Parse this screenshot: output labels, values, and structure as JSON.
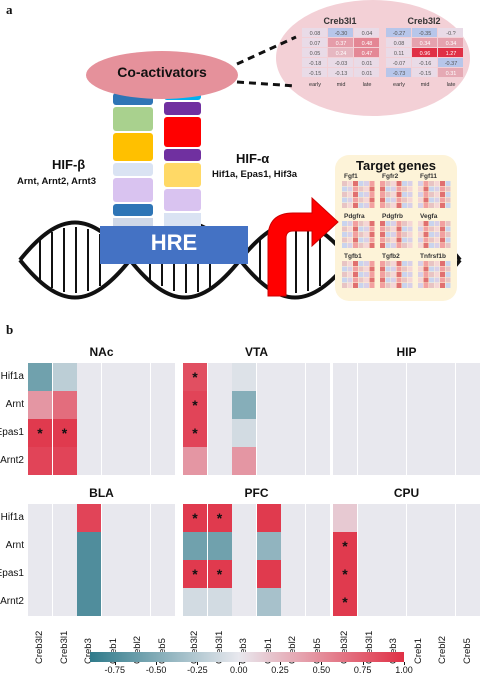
{
  "panel_a": {
    "label": "a",
    "coactivators": "Co-activators",
    "hif_beta": {
      "title": "HIF-β",
      "members": "Arnt, Arnt2, Arnt3"
    },
    "hif_alpha": {
      "title": "HIF-α",
      "members": "Hif1a, Epas1, Hif3a"
    },
    "hre": "HRE",
    "target_genes": "Target genes",
    "zoom": {
      "genes": [
        "Creb3l1",
        "Creb3l2"
      ],
      "cols": [
        "early",
        "mid",
        "late"
      ],
      "values": [
        [
          "0.08",
          "-0.30",
          "0.04",
          "-0.27",
          "-0.35",
          "-0.?"
        ],
        [
          "0.07",
          "0.37",
          "0.48",
          "0.08",
          "0.34",
          "0.34"
        ],
        [
          "0.05",
          "0.24",
          "0.47",
          "0.11",
          "0.96",
          "1.27"
        ],
        [
          "-0.18",
          "-0.03",
          "0.01",
          "-0.07",
          "-0.16",
          "-0.37"
        ],
        [
          "-0.15",
          "-0.13",
          "0.01",
          "-0.73",
          "-0.15",
          "0.31"
        ]
      ]
    },
    "target_gene_names": [
      "Fgf1",
      "Fgfr2",
      "Fgf11",
      "Pdgfra",
      "Pdgfrb",
      "Vegfa",
      "Tgfb1",
      "Tgfb2",
      "Tnfrsf1b"
    ]
  },
  "panel_b": {
    "label": "b",
    "rows": [
      "Hif1a",
      "Arnt",
      "Epas1",
      "Arnt2"
    ],
    "cols": [
      "Creb3l2",
      "Creb3l1",
      "Creb3",
      "Creb1",
      "Crebl2",
      "Creb5"
    ],
    "colorbar": {
      "ticks": [
        "-0.75",
        "-0.50",
        "-0.25",
        "0.00",
        "0.25",
        "0.50",
        "0.75",
        "1.00"
      ],
      "min": -0.9,
      "max": 1.0
    },
    "colors": {
      "neg": "#2f7a8a",
      "zero": "#e8e8ee",
      "pos": "#e03045"
    }
  },
  "chart_data": [
    {
      "type": "heatmap",
      "title": "NAc",
      "rows": [
        "Hif1a",
        "Arnt",
        "Epas1",
        "Arnt2"
      ],
      "cols": [
        "Creb3l2",
        "Creb3l1",
        "Creb3",
        "Creb1",
        "Crebl2",
        "Creb5"
      ],
      "values": [
        [
          -0.55,
          -0.2,
          0,
          0,
          0,
          0
        ],
        [
          0.4,
          0.6,
          0,
          0,
          0,
          0
        ],
        [
          0.85,
          0.85,
          0,
          0,
          0,
          0
        ],
        [
          0.8,
          0.8,
          0,
          0,
          0,
          0
        ]
      ],
      "significant": [
        [
          false,
          false,
          false,
          false,
          false,
          false
        ],
        [
          false,
          false,
          false,
          false,
          false,
          false
        ],
        [
          true,
          true,
          false,
          false,
          false,
          false
        ],
        [
          false,
          false,
          false,
          false,
          false,
          false
        ]
      ]
    },
    {
      "type": "heatmap",
      "title": "VTA",
      "rows": [
        "Hif1a",
        "Arnt",
        "Epas1",
        "Arnt2"
      ],
      "cols": [
        "Creb3l2",
        "Creb3l1",
        "Creb3",
        "Creb1",
        "Crebl2",
        "Creb5"
      ],
      "values": [
        [
          0.75,
          0,
          -0.05,
          0,
          0,
          0
        ],
        [
          0.8,
          0,
          -0.45,
          0,
          0,
          0
        ],
        [
          0.8,
          0,
          -0.1,
          0,
          0,
          0
        ],
        [
          0.4,
          0,
          0.4,
          0,
          0,
          0
        ]
      ],
      "significant": [
        [
          true,
          false,
          false,
          false,
          false,
          false
        ],
        [
          true,
          false,
          false,
          false,
          false,
          false
        ],
        [
          true,
          false,
          false,
          false,
          false,
          false
        ],
        [
          false,
          false,
          false,
          false,
          false,
          false
        ]
      ]
    },
    {
      "type": "heatmap",
      "title": "HIP",
      "rows": [
        "Hif1a",
        "Arnt",
        "Epas1",
        "Arnt2"
      ],
      "cols": [
        "Creb3l2",
        "Creb3l1",
        "Creb3",
        "Creb1",
        "Crebl2",
        "Creb5"
      ],
      "values": [
        [
          0,
          0,
          0,
          0,
          0,
          0
        ],
        [
          0,
          0,
          0,
          0,
          0,
          0
        ],
        [
          0,
          0,
          0,
          0,
          0,
          0
        ],
        [
          0,
          0,
          0,
          0,
          0,
          0
        ]
      ],
      "significant": [
        [
          false,
          false,
          false,
          false,
          false,
          false
        ],
        [
          false,
          false,
          false,
          false,
          false,
          false
        ],
        [
          false,
          false,
          false,
          false,
          false,
          false
        ],
        [
          false,
          false,
          false,
          false,
          false,
          false
        ]
      ]
    },
    {
      "type": "heatmap",
      "title": "BLA",
      "rows": [
        "Hif1a",
        "Arnt",
        "Epas1",
        "Arnt2"
      ],
      "cols": [
        "Creb3l2",
        "Creb3l1",
        "Creb3",
        "Creb1",
        "Crebl2",
        "Creb5"
      ],
      "values": [
        [
          0,
          0,
          0.8,
          0,
          0,
          0
        ],
        [
          0,
          0,
          -0.7,
          0,
          0,
          0
        ],
        [
          0,
          0,
          -0.7,
          0,
          0,
          0
        ],
        [
          0,
          0,
          -0.7,
          0,
          0,
          0
        ]
      ],
      "significant": [
        [
          false,
          false,
          false,
          false,
          false,
          false
        ],
        [
          false,
          false,
          false,
          false,
          false,
          false
        ],
        [
          false,
          false,
          false,
          false,
          false,
          false
        ],
        [
          false,
          false,
          false,
          false,
          false,
          false
        ]
      ]
    },
    {
      "type": "heatmap",
      "title": "PFC",
      "rows": [
        "Hif1a",
        "Arnt",
        "Epas1",
        "Arnt2"
      ],
      "cols": [
        "Creb3l2",
        "Creb3l1",
        "Creb3",
        "Creb1",
        "Crebl2",
        "Creb5"
      ],
      "values": [
        [
          0.85,
          0.85,
          0,
          0.85,
          0,
          0
        ],
        [
          -0.55,
          -0.55,
          0,
          -0.4,
          0,
          0
        ],
        [
          0.85,
          0.85,
          0,
          0.85,
          0,
          0
        ],
        [
          -0.1,
          -0.1,
          0,
          -0.3,
          0,
          0
        ]
      ],
      "significant": [
        [
          true,
          true,
          false,
          false,
          false,
          false
        ],
        [
          false,
          false,
          false,
          false,
          false,
          false
        ],
        [
          true,
          true,
          false,
          false,
          false,
          false
        ],
        [
          false,
          false,
          false,
          false,
          false,
          false
        ]
      ]
    },
    {
      "type": "heatmap",
      "title": "CPU",
      "rows": [
        "Hif1a",
        "Arnt",
        "Epas1",
        "Arnt2"
      ],
      "cols": [
        "Creb3l2",
        "Creb3l1",
        "Creb3",
        "Creb1",
        "Crebl2",
        "Creb5"
      ],
      "values": [
        [
          0.15,
          0,
          0,
          0,
          0,
          0
        ],
        [
          0.85,
          0,
          0,
          0,
          0,
          0
        ],
        [
          0.85,
          0,
          0,
          0,
          0,
          0
        ],
        [
          0.85,
          0,
          0,
          0,
          0,
          0
        ]
      ],
      "significant": [
        [
          false,
          false,
          false,
          false,
          false,
          false
        ],
        [
          true,
          false,
          false,
          false,
          false,
          false
        ],
        [
          true,
          false,
          false,
          false,
          false,
          false
        ],
        [
          true,
          false,
          false,
          false,
          false,
          false
        ]
      ]
    }
  ]
}
